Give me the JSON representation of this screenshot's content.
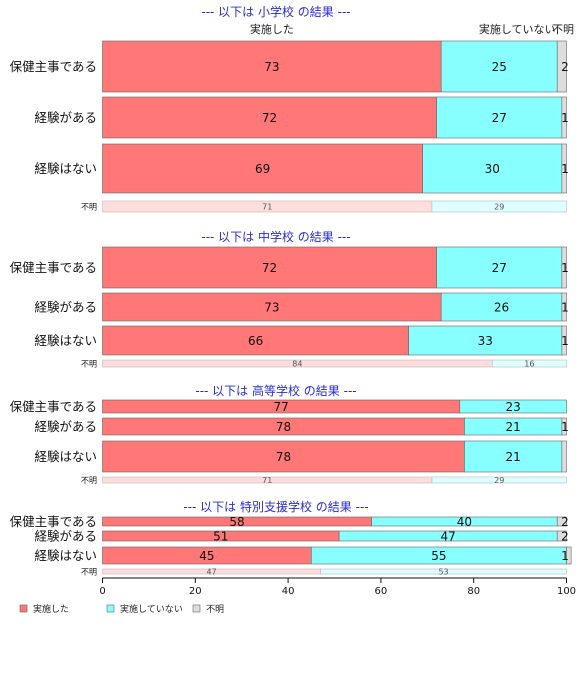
{
  "chart_data": {
    "type": "bar",
    "orientation": "horizontal",
    "stacked": true,
    "xlim": [
      0,
      100
    ],
    "x_ticks": [
      "0",
      "20",
      "40",
      "60",
      "80",
      "100"
    ],
    "column_headers": [
      "実施した",
      "実施していない",
      "不明"
    ],
    "legend": {
      "placement": "bottom-left",
      "entries": [
        {
          "label": "実施した",
          "color": "#ff7777"
        },
        {
          "label": "実施していない",
          "color": "#88ffff"
        },
        {
          "label": "不明",
          "color": "#dddddd"
        }
      ]
    },
    "series_colors": [
      "#ff7777",
      "#88ffff",
      "#dddddd"
    ],
    "sections": [
      {
        "title": "--- 以下は 小学校 の結果 ---",
        "rows": [
          {
            "category": "保健主事である",
            "values": [
              73,
              25,
              2
            ],
            "labels": [
              "73",
              "25",
              "2"
            ]
          },
          {
            "category": "経験がある",
            "values": [
              72,
              27,
              1
            ],
            "labels": [
              "72",
              "27",
              "1"
            ]
          },
          {
            "category": "経験はない",
            "values": [
              69,
              30,
              1
            ],
            "labels": [
              "69",
              "30",
              "1"
            ]
          },
          {
            "category": "不明",
            "values": [
              71,
              29,
              0
            ],
            "labels": [
              "71",
              "29",
              ""
            ],
            "small": true
          }
        ]
      },
      {
        "title": "--- 以下は 中学校 の結果 ---",
        "rows": [
          {
            "category": "保健主事である",
            "values": [
              72,
              27,
              1
            ],
            "labels": [
              "72",
              "27",
              "1"
            ]
          },
          {
            "category": "経験がある",
            "values": [
              73,
              26,
              1
            ],
            "labels": [
              "73",
              "26",
              "1"
            ]
          },
          {
            "category": "経験はない",
            "values": [
              66,
              33,
              1
            ],
            "labels": [
              "66",
              "33",
              "1"
            ]
          },
          {
            "category": "不明",
            "values": [
              84,
              16,
              0
            ],
            "labels": [
              "84",
              "16",
              ""
            ],
            "small": true
          }
        ]
      },
      {
        "title": "--- 以下は 高等学校 の結果 ---",
        "rows": [
          {
            "category": "保健主事である",
            "values": [
              77,
              23,
              0
            ],
            "labels": [
              "77",
              "23",
              ""
            ]
          },
          {
            "category": "経験がある",
            "values": [
              78,
              21,
              1
            ],
            "labels": [
              "78",
              "21",
              "1"
            ]
          },
          {
            "category": "経験はない",
            "values": [
              78,
              21,
              1
            ],
            "labels": [
              "78",
              "21",
              ""
            ]
          },
          {
            "category": "不明",
            "values": [
              71,
              29,
              0
            ],
            "labels": [
              "71",
              "29",
              ""
            ],
            "small": true
          }
        ]
      },
      {
        "title": "--- 以下は 特別支援学校 の結果 ---",
        "rows": [
          {
            "category": "保健主事である",
            "values": [
              58,
              40,
              2
            ],
            "labels": [
              "58",
              "40",
              "2"
            ]
          },
          {
            "category": "経験がある",
            "values": [
              51,
              47,
              2
            ],
            "labels": [
              "51",
              "47",
              "2"
            ]
          },
          {
            "category": "経験はない",
            "values": [
              45,
              55,
              1
            ],
            "labels": [
              "45",
              "55",
              "1"
            ]
          },
          {
            "category": "不明",
            "values": [
              47,
              53,
              0
            ],
            "labels": [
              "47",
              "53",
              ""
            ],
            "small": true
          }
        ]
      }
    ]
  }
}
